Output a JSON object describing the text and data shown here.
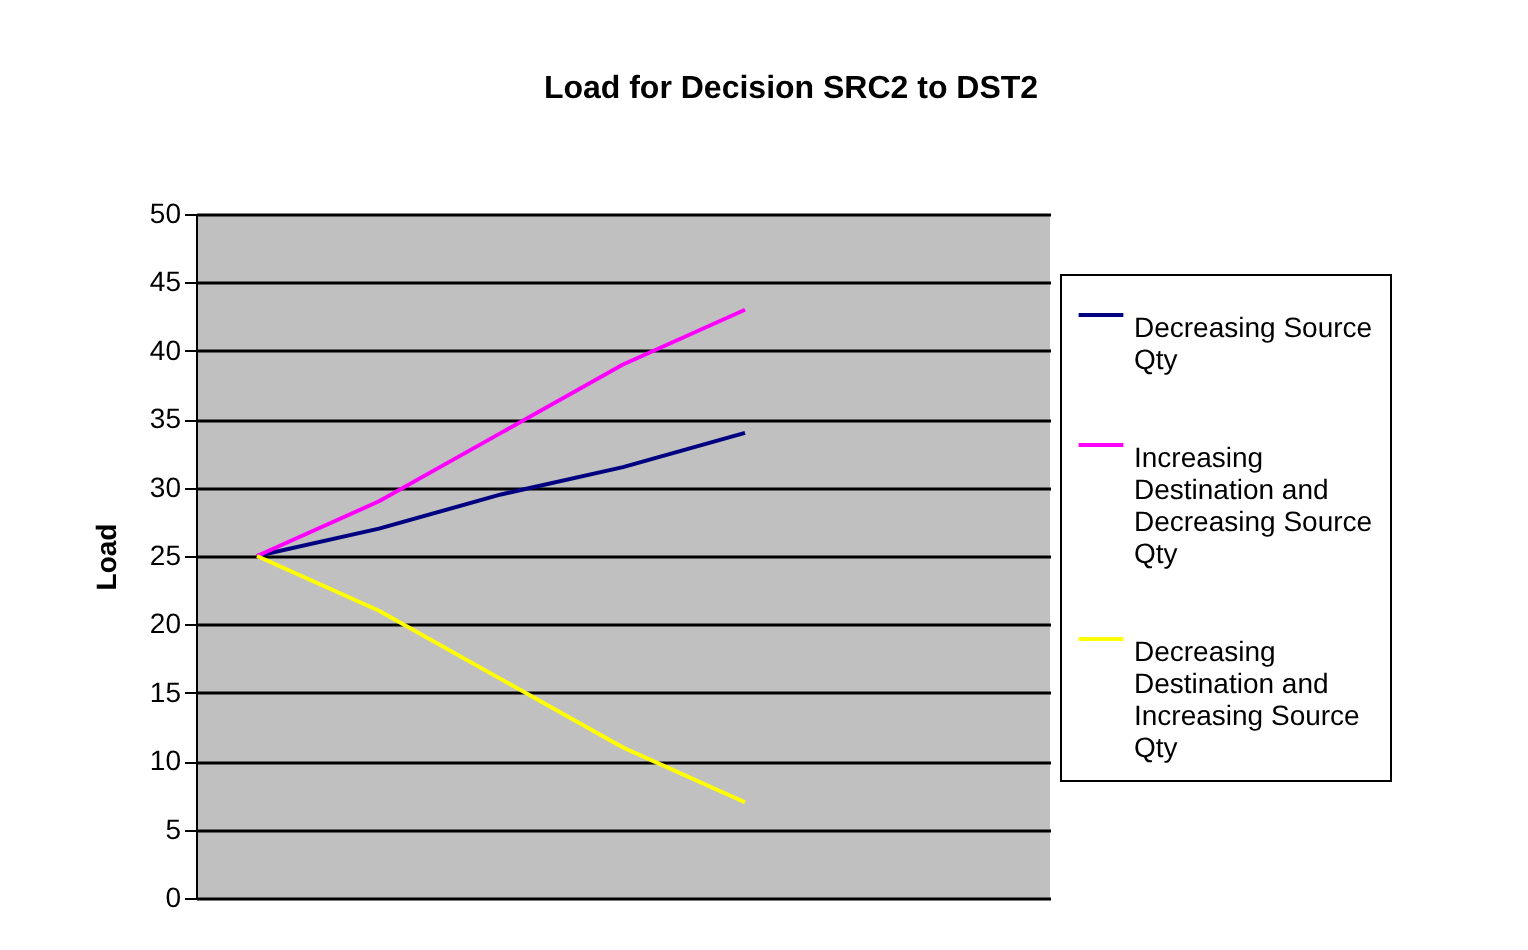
{
  "chart_data": {
    "type": "line",
    "title": "Load for Decision SRC2 to DST2",
    "ylabel": "Load",
    "categories": [
      null,
      null,
      null,
      null,
      null,
      null,
      null
    ],
    "series": [
      {
        "name": "Decreasing Source Qty",
        "color": "#000080",
        "values": [
          25,
          27,
          29.5,
          31.5,
          34,
          null,
          null
        ]
      },
      {
        "name": "Increasing Destination and Decreasing Source Qty",
        "color": "#ff00ff",
        "values": [
          25,
          29,
          34,
          39,
          43,
          null,
          null
        ]
      },
      {
        "name": "Decreasing Destination and Increasing Source Qty",
        "color": "#ffff00",
        "values": [
          25,
          21,
          16,
          11,
          7,
          null,
          null
        ]
      }
    ],
    "ylim": [
      0,
      50
    ],
    "yticks": [
      0,
      5,
      10,
      15,
      20,
      25,
      30,
      35,
      40,
      45,
      50
    ],
    "grid": "y",
    "legend": "right",
    "tick_labels": "y",
    "marker": "none",
    "line_style": "solid"
  }
}
